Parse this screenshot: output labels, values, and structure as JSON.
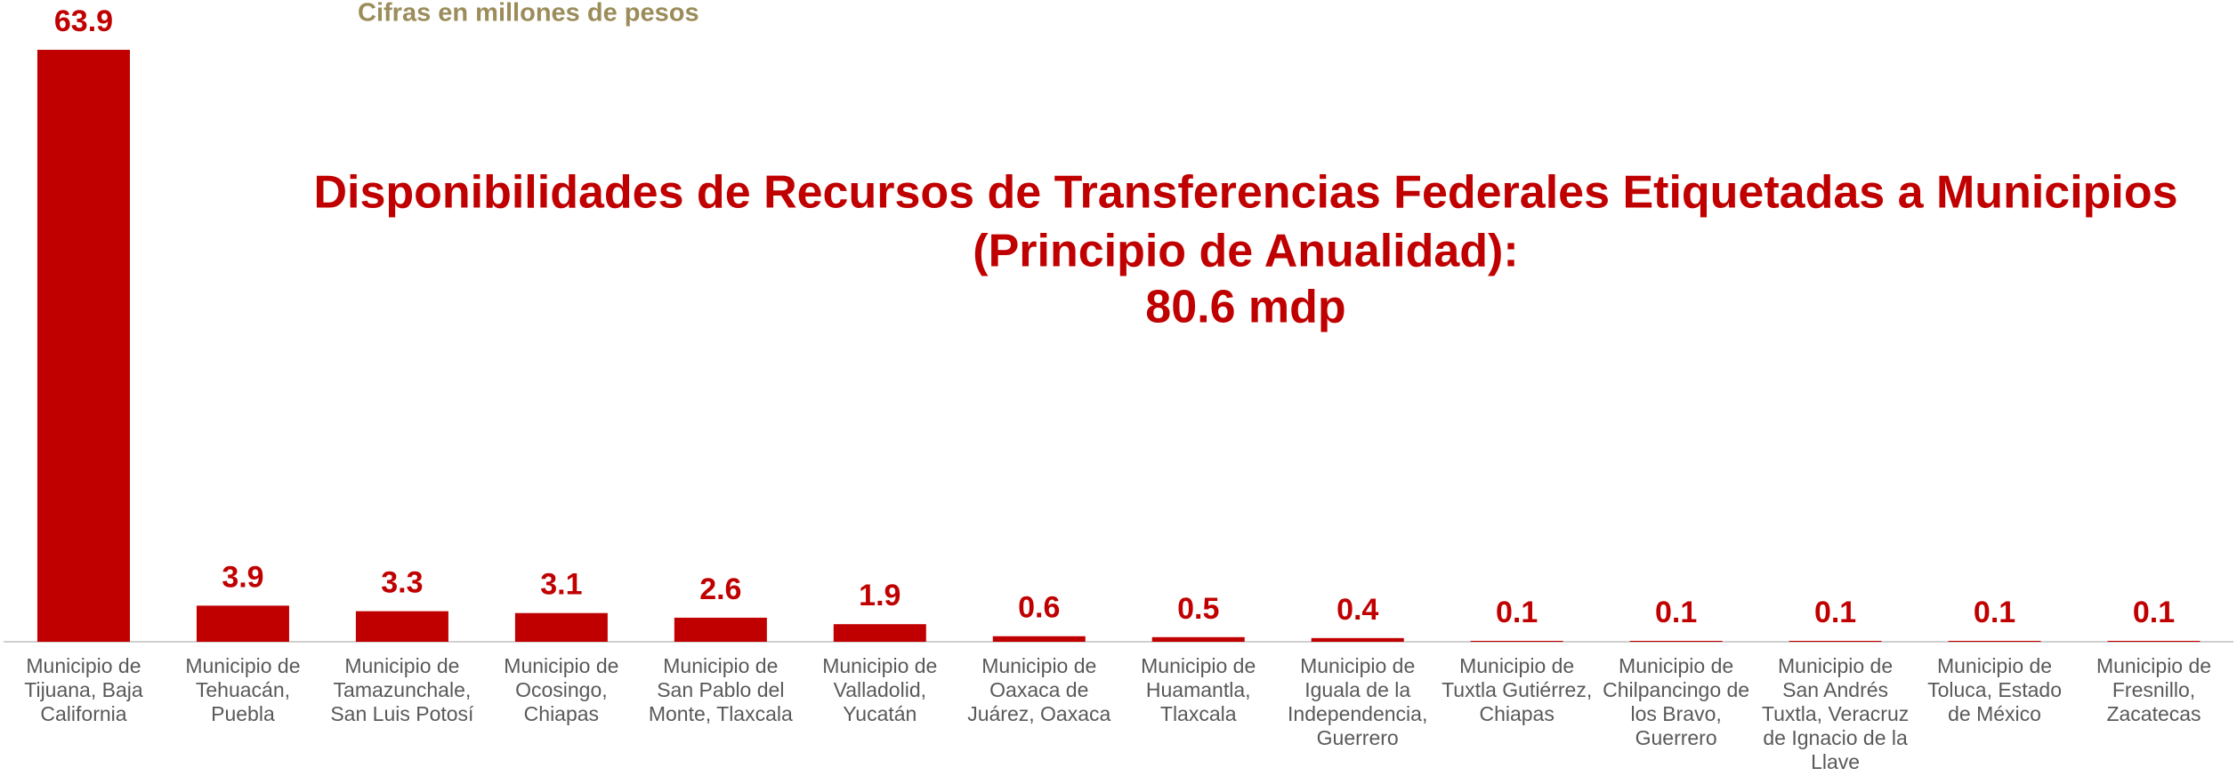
{
  "chart_data": {
    "type": "bar",
    "title": [
      "Disponibilidades de Recursos de Transferencias Federales Etiquetadas a Municipios",
      "(Principio de Anualidad):",
      "80.6 mdp"
    ],
    "subtitle": "Cifras en millones de pesos",
    "categories": [
      "Municipio de Tijuana, Baja California",
      "Municipio de Tehuacán, Puebla",
      "Municipio de Tamazunchale, San Luis Potosí",
      "Municipio de Ocosingo, Chiapas",
      "Municipio de San Pablo del Monte, Tlaxcala",
      "Municipio de Valladolid, Yucatán",
      "Municipio de Oaxaca de Juárez, Oaxaca",
      "Municipio de Huamantla, Tlaxcala",
      "Municipio de Iguala de la Independencia, Guerrero",
      "Municipio de Tuxtla Gutiérrez, Chiapas",
      "Municipio de Chilpancingo de los Bravo, Guerrero",
      "Municipio de San Andrés Tuxtla, Veracruz de Ignacio de la Llave",
      "Municipio de Toluca, Estado de México",
      "Municipio de Fresnillo, Zacatecas"
    ],
    "values": [
      63.9,
      3.9,
      3.3,
      3.1,
      2.6,
      1.9,
      0.6,
      0.5,
      0.4,
      0.1,
      0.1,
      0.1,
      0.1,
      0.1
    ],
    "color": "#c00000",
    "ylim": [
      0,
      64
    ]
  }
}
